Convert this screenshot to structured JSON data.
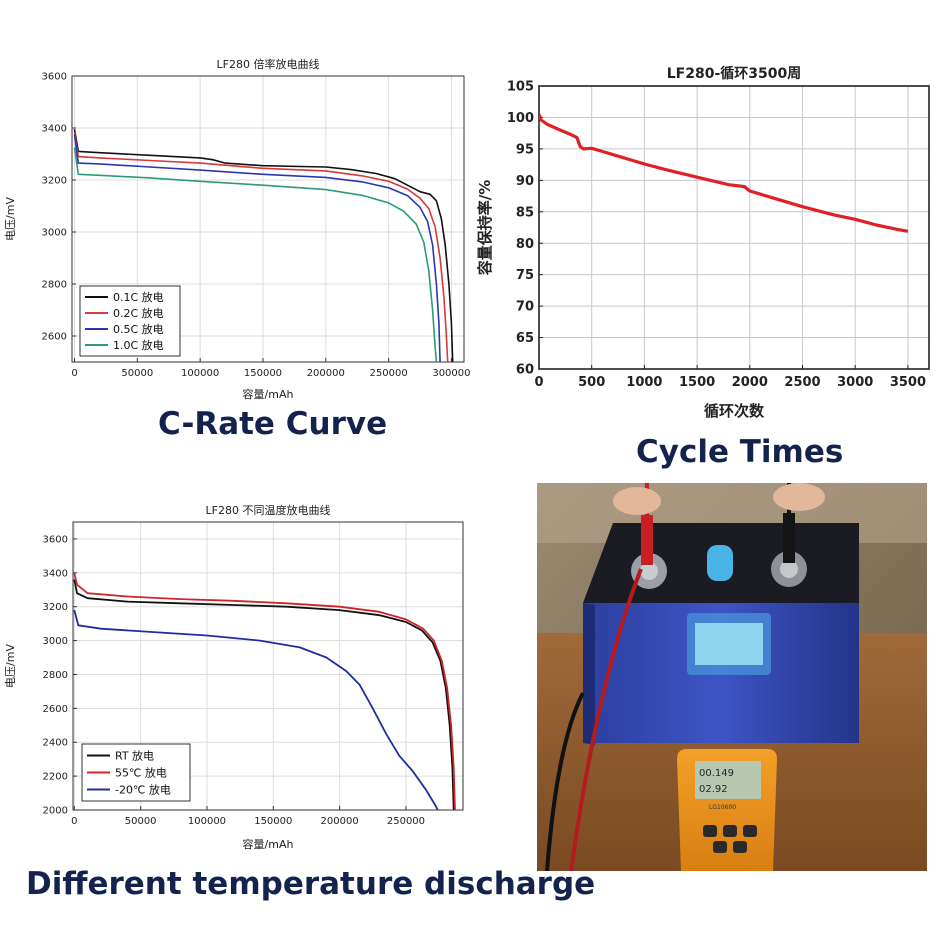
{
  "captions": {
    "c_rate": "C-Rate Curve",
    "cycle": "Cycle Times",
    "temperature": "Different temperature discharge"
  },
  "photo": {
    "meter_label": "LG10600",
    "meter_reading_1": "00.149",
    "meter_reading_2": "02.92"
  },
  "chart_data": [
    {
      "type": "line",
      "title": "LF280 倍率放电曲线",
      "xlabel": "容量/mAh",
      "ylabel": "电压/mV",
      "xlim": [
        -2000,
        310000
      ],
      "ylim": [
        2500,
        3600
      ],
      "xticks": [
        0,
        50000,
        100000,
        150000,
        200000,
        250000,
        300000
      ],
      "yticks": [
        2600,
        2800,
        3000,
        3200,
        3400,
        3600
      ],
      "grid": true,
      "legend_position": "bottom-left",
      "series": [
        {
          "name": "0.1C 放电",
          "color": "#111111",
          "points": [
            [
              0,
              3395
            ],
            [
              3000,
              3310
            ],
            [
              20000,
              3305
            ],
            [
              60000,
              3295
            ],
            [
              100000,
              3285
            ],
            [
              110000,
              3278
            ],
            [
              120000,
              3265
            ],
            [
              150000,
              3255
            ],
            [
              180000,
              3252
            ],
            [
              200000,
              3250
            ],
            [
              220000,
              3240
            ],
            [
              240000,
              3225
            ],
            [
              255000,
              3205
            ],
            [
              265000,
              3180
            ],
            [
              275000,
              3155
            ],
            [
              283000,
              3145
            ],
            [
              288000,
              3120
            ],
            [
              292000,
              3050
            ],
            [
              295000,
              2950
            ],
            [
              298000,
              2800
            ],
            [
              300000,
              2650
            ],
            [
              301000,
              2500
            ]
          ]
        },
        {
          "name": "0.2C 放电",
          "color": "#d63a3a",
          "points": [
            [
              0,
              3385
            ],
            [
              3000,
              3290
            ],
            [
              20000,
              3285
            ],
            [
              60000,
              3275
            ],
            [
              100000,
              3265
            ],
            [
              150000,
              3245
            ],
            [
              200000,
              3235
            ],
            [
              230000,
              3215
            ],
            [
              250000,
              3195
            ],
            [
              265000,
              3165
            ],
            [
              275000,
              3130
            ],
            [
              282000,
              3090
            ],
            [
              287000,
              3020
            ],
            [
              291000,
              2900
            ],
            [
              294000,
              2750
            ],
            [
              296000,
              2600
            ],
            [
              297000,
              2500
            ]
          ]
        },
        {
          "name": "0.5C 放电",
          "color": "#2a36b4",
          "points": [
            [
              0,
              3375
            ],
            [
              3000,
              3265
            ],
            [
              20000,
              3262
            ],
            [
              60000,
              3250
            ],
            [
              100000,
              3238
            ],
            [
              150000,
              3222
            ],
            [
              200000,
              3210
            ],
            [
              230000,
              3192
            ],
            [
              250000,
              3170
            ],
            [
              265000,
              3140
            ],
            [
              275000,
              3095
            ],
            [
              281000,
              3040
            ],
            [
              285000,
              2950
            ],
            [
              288000,
              2800
            ],
            [
              290000,
              2650
            ],
            [
              291000,
              2500
            ]
          ]
        },
        {
          "name": "1.0C 放电",
          "color": "#2e9a7c",
          "points": [
            [
              0,
              3325
            ],
            [
              3000,
              3222
            ],
            [
              20000,
              3218
            ],
            [
              60000,
              3208
            ],
            [
              100000,
              3195
            ],
            [
              150000,
              3180
            ],
            [
              200000,
              3163
            ],
            [
              230000,
              3140
            ],
            [
              250000,
              3112
            ],
            [
              262000,
              3080
            ],
            [
              272000,
              3030
            ],
            [
              278000,
              2960
            ],
            [
              282000,
              2850
            ],
            [
              285000,
              2700
            ],
            [
              287000,
              2560
            ],
            [
              288000,
              2500
            ]
          ]
        }
      ]
    },
    {
      "type": "line",
      "title": "LF280-循环3500周",
      "xlabel": "循环次数",
      "ylabel": "容量保持率/%",
      "xlim": [
        0,
        3700
      ],
      "ylim": [
        60,
        105
      ],
      "xticks": [
        0,
        500,
        1000,
        1500,
        2000,
        2500,
        3000,
        3500
      ],
      "yticks": [
        60,
        65,
        70,
        75,
        80,
        85,
        90,
        95,
        100,
        105
      ],
      "grid": true,
      "series": [
        {
          "name": "",
          "color": "#e01f26",
          "points": [
            [
              0,
              100.5
            ],
            [
              20,
              99.6
            ],
            [
              80,
              98.9
            ],
            [
              200,
              98.0
            ],
            [
              300,
              97.3
            ],
            [
              360,
              96.8
            ],
            [
              390,
              95.4
            ],
            [
              420,
              95.0
            ],
            [
              500,
              95.1
            ],
            [
              600,
              94.6
            ],
            [
              800,
              93.6
            ],
            [
              1000,
              92.6
            ],
            [
              1200,
              91.7
            ],
            [
              1500,
              90.5
            ],
            [
              1800,
              89.3
            ],
            [
              1950,
              89.0
            ],
            [
              2000,
              88.3
            ],
            [
              2200,
              87.3
            ],
            [
              2500,
              85.8
            ],
            [
              2800,
              84.5
            ],
            [
              3000,
              83.8
            ],
            [
              3200,
              82.9
            ],
            [
              3400,
              82.2
            ],
            [
              3500,
              81.9
            ]
          ]
        }
      ]
    },
    {
      "type": "line",
      "title": "LF280 不同温度放电曲线",
      "xlabel": "容量/mAh",
      "ylabel": "电压/mV",
      "xlim": [
        -1000,
        293000
      ],
      "ylim": [
        2000,
        3700
      ],
      "xticks": [
        0,
        50000,
        100000,
        150000,
        200000,
        250000
      ],
      "yticks": [
        2000,
        2200,
        2400,
        2600,
        2800,
        3000,
        3200,
        3400,
        3600
      ],
      "grid": true,
      "legend_position": "bottom-left",
      "series": [
        {
          "name": "RT 放电",
          "color": "#111111",
          "points": [
            [
              0,
              3360
            ],
            [
              2000,
              3280
            ],
            [
              10000,
              3250
            ],
            [
              40000,
              3230
            ],
            [
              80000,
              3220
            ],
            [
              120000,
              3210
            ],
            [
              160000,
              3200
            ],
            [
              200000,
              3180
            ],
            [
              230000,
              3150
            ],
            [
              250000,
              3110
            ],
            [
              262000,
              3060
            ],
            [
              270000,
              2990
            ],
            [
              276000,
              2880
            ],
            [
              280000,
              2720
            ],
            [
              283000,
              2500
            ],
            [
              285000,
              2250
            ],
            [
              286000,
              2000
            ]
          ]
        },
        {
          "name": "55℃ 放电",
          "color": "#d0242b",
          "points": [
            [
              0,
              3400
            ],
            [
              2000,
              3330
            ],
            [
              10000,
              3280
            ],
            [
              40000,
              3260
            ],
            [
              80000,
              3245
            ],
            [
              120000,
              3235
            ],
            [
              160000,
              3220
            ],
            [
              200000,
              3200
            ],
            [
              230000,
              3170
            ],
            [
              250000,
              3125
            ],
            [
              263000,
              3070
            ],
            [
              271000,
              3000
            ],
            [
              277000,
              2880
            ],
            [
              281000,
              2720
            ],
            [
              284000,
              2500
            ],
            [
              286000,
              2250
            ],
            [
              287000,
              2000
            ]
          ]
        },
        {
          "name": "-20℃ 放电",
          "color": "#1f2e9e",
          "points": [
            [
              0,
              3180
            ],
            [
              3000,
              3090
            ],
            [
              20000,
              3070
            ],
            [
              60000,
              3050
            ],
            [
              100000,
              3030
            ],
            [
              140000,
              3000
            ],
            [
              170000,
              2960
            ],
            [
              190000,
              2900
            ],
            [
              205000,
              2820
            ],
            [
              215000,
              2740
            ],
            [
              225000,
              2600
            ],
            [
              235000,
              2450
            ],
            [
              245000,
              2320
            ],
            [
              255000,
              2230
            ],
            [
              265000,
              2120
            ],
            [
              272000,
              2030
            ],
            [
              274000,
              2000
            ]
          ]
        }
      ]
    }
  ]
}
